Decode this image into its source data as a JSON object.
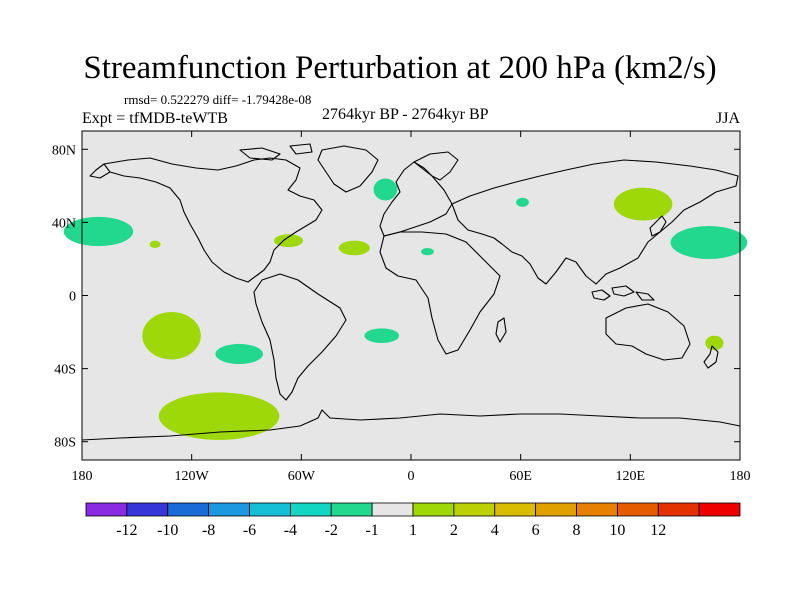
{
  "figure": {
    "title": "Streamfunction Perturbation at 200 hPa (km2/s)",
    "stats_line": "rmsd= 0.522279 diff= -1.79428e-08",
    "experiment": "Expt = tfMDB-teWTB",
    "period": "2764kyr BP - 2764kyr BP",
    "season": "JJA"
  },
  "map": {
    "projection": "cylindrical-equidistant",
    "lon_range": [
      -180,
      180
    ],
    "lat_range": [
      -90,
      90
    ],
    "background_color": "#e6e6e6",
    "lat_ticks": [
      {
        "value": 80,
        "label": "80N"
      },
      {
        "value": 40,
        "label": "40N"
      },
      {
        "value": 0,
        "label": "0"
      },
      {
        "value": -40,
        "label": "40S"
      },
      {
        "value": -80,
        "label": "80S"
      }
    ],
    "lon_ticks": [
      {
        "value": -180,
        "label": "180"
      },
      {
        "value": -120,
        "label": "120W"
      },
      {
        "value": -60,
        "label": "60W"
      },
      {
        "value": 0,
        "label": "0"
      },
      {
        "value": 60,
        "label": "60E"
      },
      {
        "value": 120,
        "label": "120E"
      },
      {
        "value": 180,
        "label": "180"
      }
    ],
    "anomaly_regions": [
      {
        "name": "north-atlantic-west",
        "lon": -171,
        "lat": 35,
        "dlon": 19,
        "dlat": 8,
        "level": -1,
        "color": "#22d88f"
      },
      {
        "name": "north-pacific-east",
        "lon": -140,
        "lat": 28,
        "dlon": 3,
        "dlat": 2,
        "level": 1,
        "color": "#9ed809"
      },
      {
        "name": "western-atlantic",
        "lon": -67,
        "lat": 30,
        "dlon": 8,
        "dlat": 3.5,
        "level": 1,
        "color": "#9ed809"
      },
      {
        "name": "central-atlantic",
        "lon": -31,
        "lat": 26,
        "dlon": 8.5,
        "dlat": 4,
        "level": 1,
        "color": "#9ed809"
      },
      {
        "name": "north-atlantic-east",
        "lon": -14,
        "lat": 58,
        "dlon": 6.5,
        "dlat": 6,
        "level": -1,
        "color": "#22d88f"
      },
      {
        "name": "north-africa",
        "lon": 9,
        "lat": 24,
        "dlon": 3.5,
        "dlat": 2,
        "level": -1,
        "color": "#22d88f"
      },
      {
        "name": "caspian",
        "lon": 61,
        "lat": 51,
        "dlon": 3.5,
        "dlat": 2.5,
        "level": -1,
        "color": "#22d88f"
      },
      {
        "name": "siberia",
        "lon": 127,
        "lat": 50,
        "dlon": 16,
        "dlat": 9,
        "level": 1,
        "color": "#9ed809"
      },
      {
        "name": "north-pacific-west",
        "lon": 163,
        "lat": 29,
        "dlon": 21,
        "dlat": 9,
        "level": -1,
        "color": "#22d88f"
      },
      {
        "name": "south-pacific-central",
        "lon": -131,
        "lat": -22,
        "dlon": 16,
        "dlat": 13,
        "level": 1,
        "color": "#9ed809"
      },
      {
        "name": "south-pacific-east",
        "lon": -94,
        "lat": -32,
        "dlon": 13,
        "dlat": 5.5,
        "level": -1,
        "color": "#22d88f"
      },
      {
        "name": "south-atlantic",
        "lon": -16,
        "lat": -22,
        "dlon": 9.5,
        "dlat": 4,
        "level": -1,
        "color": "#22d88f"
      },
      {
        "name": "new-zealand",
        "lon": 166,
        "lat": -26,
        "dlon": 5,
        "dlat": 4,
        "level": 1,
        "color": "#9ed809"
      },
      {
        "name": "southern-ocean",
        "lon": -105,
        "lat": -66,
        "dlon": 33,
        "dlat": 13,
        "level": 1,
        "color": "#9ed809"
      }
    ]
  },
  "colorbar": {
    "colors": [
      "#8a2be2",
      "#3636d8",
      "#1a6ad8",
      "#1b98e0",
      "#16bfd6",
      "#12d6c2",
      "#22d88f",
      "#e6e6e6",
      "#9ed809",
      "#bcd006",
      "#d8bd03",
      "#e0a000",
      "#e58000",
      "#e45b00",
      "#e33200",
      "#ef0000"
    ],
    "tick_labels": [
      "-12",
      "-10",
      "-8",
      "-6",
      "-4",
      "-2",
      "-1",
      "1",
      "2",
      "4",
      "6",
      "8",
      "10",
      "12"
    ]
  }
}
